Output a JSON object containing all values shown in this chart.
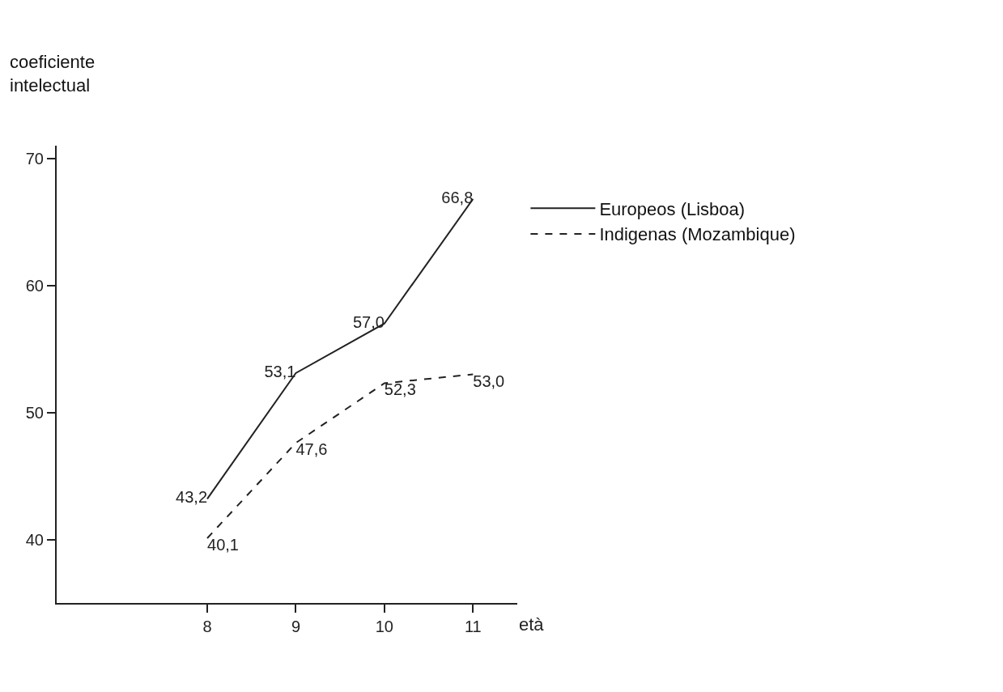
{
  "chart_data": {
    "type": "line",
    "xlabel": "età",
    "ylabel": "coeficiente intelectual",
    "x": [
      8,
      9,
      10,
      11
    ],
    "series": [
      {
        "name": "Europeos (Lisboa)",
        "color": "#222222",
        "line_style": "solid",
        "values": [
          43.2,
          53.1,
          57.0,
          66.8
        ],
        "value_labels": [
          "43,2",
          "53,1",
          "57,0",
          "66,8"
        ]
      },
      {
        "name": "Indigenas (Mozambique)",
        "color": "#222222",
        "line_style": "dashed",
        "values": [
          40.1,
          47.6,
          52.3,
          53.0
        ],
        "value_labels": [
          "40,1",
          "47,6",
          "52,3",
          "53,0"
        ]
      }
    ],
    "xlim": [
      6.3,
      11.5
    ],
    "xticks": [
      8,
      9,
      10,
      11
    ],
    "ylim": [
      35,
      71
    ],
    "yticks": [
      40,
      50,
      60,
      70
    ],
    "legend": "top right",
    "marker": "none"
  }
}
